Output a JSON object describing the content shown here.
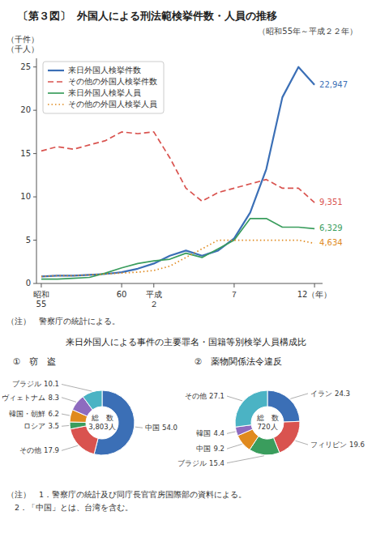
{
  "chart_data": [
    {
      "type": "line",
      "figure_number": "〔第３図〕",
      "title": "外国人による刑法範検挙件数・人員の推移",
      "subtitle": "（昭和55年～平成２２年）",
      "ylabel": [
        "（千件）",
        "（千人）"
      ],
      "note": "（注）　警察庁の統計による。",
      "categories": [
        "昭和\n55",
        null,
        null,
        null,
        null,
        "60",
        null,
        "平成\n２",
        null,
        null,
        null,
        null,
        "７",
        null,
        null,
        null,
        null,
        "12（年）"
      ],
      "ylim": [
        0,
        26
      ],
      "yticks": [
        0,
        5,
        10,
        15,
        20,
        25
      ],
      "grid": false,
      "legend": "upper left",
      "series": [
        {
          "name": "来日外国人検挙件数",
          "line_style": "solid",
          "values": [
            0.8,
            0.9,
            0.9,
            1.0,
            1.1,
            1.3,
            1.7,
            2.3,
            3.2,
            3.8,
            3.2,
            3.8,
            5.2,
            8.2,
            13.2,
            21.5,
            25.0,
            22.947
          ],
          "value_labels": [
            null,
            null,
            null,
            null,
            null,
            null,
            null,
            null,
            null,
            null,
            null,
            null,
            null,
            null,
            null,
            null,
            null,
            "22,947"
          ]
        },
        {
          "name": "その他の外国人検挙件数",
          "line_style": "dashed",
          "values": [
            15.3,
            15.8,
            15.5,
            16.0,
            16.5,
            17.5,
            17.3,
            17.5,
            14.5,
            11.0,
            9.5,
            10.5,
            11.0,
            11.5,
            12.0,
            11.0,
            11.0,
            9.351
          ],
          "value_labels": [
            null,
            null,
            null,
            null,
            null,
            null,
            null,
            null,
            null,
            null,
            null,
            null,
            null,
            null,
            null,
            null,
            null,
            "9,351"
          ]
        },
        {
          "name": "来日外国人検挙人員",
          "line_style": "solid",
          "values": [
            0.5,
            0.5,
            0.6,
            0.7,
            1.2,
            1.8,
            2.3,
            2.6,
            2.8,
            3.5,
            3.0,
            4.0,
            5.0,
            7.5,
            7.5,
            6.5,
            6.5,
            6.329
          ],
          "value_labels": [
            null,
            null,
            null,
            null,
            null,
            null,
            null,
            null,
            null,
            null,
            null,
            null,
            null,
            null,
            null,
            null,
            null,
            "6,329"
          ]
        },
        {
          "name": "その他の外国人検挙人員",
          "line_style": "dotted",
          "values": [
            0.8,
            0.9,
            0.9,
            1.0,
            1.1,
            1.2,
            1.3,
            1.5,
            2.0,
            3.0,
            4.0,
            5.0,
            5.0,
            5.0,
            5.0,
            5.0,
            5.0,
            4.634
          ],
          "value_labels": [
            null,
            null,
            null,
            null,
            null,
            null,
            null,
            null,
            null,
            null,
            null,
            null,
            null,
            null,
            null,
            null,
            null,
            "4,634"
          ]
        }
      ]
    },
    {
      "type": "donut",
      "heading": "来日外国人による事件の主要罪名・国籍等別検挙人員構成比",
      "title": "①　窃　盗",
      "center_label": [
        "総　数",
        "3,803人"
      ],
      "categories": [
        "中国",
        "その他",
        "ロシア",
        "韓国・朝鮮",
        "ヴィェトナム",
        "ブラジル"
      ],
      "values": [
        54.0,
        17.9,
        3.5,
        6.2,
        8.3,
        10.1
      ],
      "value_labels": [
        "54.0",
        "17.9",
        "3.5",
        "6.2",
        "8.3",
        "10.1"
      ]
    },
    {
      "type": "donut",
      "title": "②　薬物関係法令違反",
      "center_label": [
        "総　数",
        "720人"
      ],
      "categories": [
        "イラン",
        "フィリピン",
        "ブラジル",
        "中国",
        "韓国",
        "その他"
      ],
      "values": [
        24.3,
        19.6,
        15.4,
        9.2,
        4.4,
        27.1
      ],
      "value_labels": [
        "24.3",
        "19.6",
        "15.4",
        "9.2",
        "4.4",
        "27.1"
      ],
      "notes": [
        "（注）　1．警察庁の統計及び同庁長官官房国際部の資料による。",
        "　2．「中国」とは、台湾を含む。"
      ]
    }
  ]
}
